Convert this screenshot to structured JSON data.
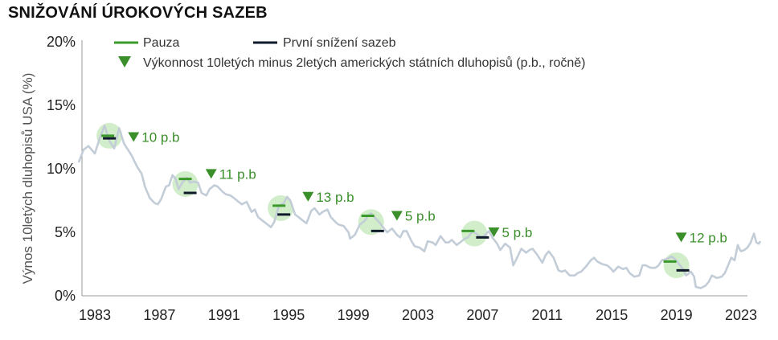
{
  "title": "SNIŽOVÁNÍ ÚROKOVÝCH SAZEB",
  "chart_data": {
    "type": "line",
    "title": "SNIŽOVÁNÍ ÚROKOVÝCH SAZEB",
    "ylabel": "Výnos 10letých dluhopisů USA (%)",
    "xlabel": "",
    "xlim": [
      1983,
      2023
    ],
    "ylim": [
      0,
      20
    ],
    "x_ticks": [
      "1983",
      "1987",
      "1991",
      "1995",
      "1999",
      "2003",
      "2007",
      "2011",
      "2015",
      "2019",
      "2023"
    ],
    "y_ticks": [
      "0%",
      "5%",
      "10%",
      "15%",
      "20%"
    ],
    "legend": {
      "pause_label": "Pauza",
      "first_cut_label": "První snížení sazeb",
      "perf_label": "Výkonnost 10letých minus 2letých amerických státních dluhopisů (p.b., ročně)"
    },
    "colors": {
      "yield": "#c3cdd8",
      "pause": "#3a9a2a",
      "first_cut": "#0f1a2a",
      "highlight": "#cdebc4",
      "annotation": "#3a8f2a"
    },
    "series": [
      {
        "values": [
          [
            1982.0,
            10.5
          ],
          [
            1982.3,
            11.5
          ],
          [
            1982.6,
            11.8
          ],
          [
            1983.0,
            11.2
          ],
          [
            1983.3,
            12.4
          ],
          [
            1983.6,
            13.4
          ],
          [
            1983.9,
            12.2
          ],
          [
            1984.2,
            11.6
          ],
          [
            1984.5,
            13.2
          ],
          [
            1984.8,
            12.0
          ],
          [
            1985.0,
            11.6
          ],
          [
            1985.3,
            11.0
          ],
          [
            1985.6,
            10.2
          ],
          [
            1985.9,
            9.6
          ],
          [
            1986.1,
            8.6
          ],
          [
            1986.4,
            7.7
          ],
          [
            1986.7,
            7.3
          ],
          [
            1986.9,
            7.2
          ],
          [
            1987.1,
            7.6
          ],
          [
            1987.4,
            8.6
          ],
          [
            1987.6,
            8.7
          ],
          [
            1987.8,
            9.5
          ],
          [
            1988.0,
            9.2
          ],
          [
            1988.2,
            8.4
          ],
          [
            1988.4,
            8.9
          ],
          [
            1988.7,
            9.3
          ],
          [
            1988.9,
            8.9
          ],
          [
            1989.1,
            9.0
          ],
          [
            1989.4,
            8.9
          ],
          [
            1989.6,
            8.1
          ],
          [
            1989.9,
            7.9
          ],
          [
            1990.1,
            8.4
          ],
          [
            1990.4,
            8.7
          ],
          [
            1990.6,
            8.6
          ],
          [
            1990.9,
            8.2
          ],
          [
            1991.1,
            8.0
          ],
          [
            1991.4,
            7.9
          ],
          [
            1991.7,
            7.6
          ],
          [
            1991.9,
            7.4
          ],
          [
            1992.1,
            7.2
          ],
          [
            1992.4,
            7.4
          ],
          [
            1992.7,
            6.6
          ],
          [
            1992.9,
            6.8
          ],
          [
            1993.1,
            6.2
          ],
          [
            1993.4,
            5.9
          ],
          [
            1993.7,
            5.6
          ],
          [
            1993.9,
            5.4
          ],
          [
            1994.1,
            5.8
          ],
          [
            1994.4,
            7.1
          ],
          [
            1994.7,
            7.3
          ],
          [
            1994.9,
            7.8
          ],
          [
            1995.1,
            7.5
          ],
          [
            1995.4,
            6.4
          ],
          [
            1995.6,
            6.2
          ],
          [
            1995.9,
            5.9
          ],
          [
            1996.1,
            5.7
          ],
          [
            1996.4,
            6.7
          ],
          [
            1996.6,
            6.9
          ],
          [
            1996.9,
            6.4
          ],
          [
            1997.1,
            6.6
          ],
          [
            1997.4,
            6.8
          ],
          [
            1997.6,
            6.2
          ],
          [
            1997.9,
            5.8
          ],
          [
            1998.1,
            5.6
          ],
          [
            1998.4,
            5.5
          ],
          [
            1998.7,
            5.0
          ],
          [
            1998.8,
            4.5
          ],
          [
            1999.1,
            4.8
          ],
          [
            1999.4,
            5.6
          ],
          [
            1999.7,
            5.9
          ],
          [
            1999.9,
            6.3
          ],
          [
            2000.1,
            6.5
          ],
          [
            2000.3,
            6.2
          ],
          [
            2000.6,
            5.8
          ],
          [
            2000.9,
            5.3
          ],
          [
            2001.1,
            5.0
          ],
          [
            2001.4,
            5.3
          ],
          [
            2001.7,
            4.8
          ],
          [
            2001.9,
            4.6
          ],
          [
            2002.1,
            5.1
          ],
          [
            2002.3,
            5.1
          ],
          [
            2002.6,
            4.3
          ],
          [
            2002.8,
            3.9
          ],
          [
            2003.1,
            3.8
          ],
          [
            2003.4,
            3.5
          ],
          [
            2003.6,
            4.3
          ],
          [
            2003.9,
            4.2
          ],
          [
            2004.1,
            4.0
          ],
          [
            2004.4,
            4.7
          ],
          [
            2004.7,
            4.2
          ],
          [
            2004.9,
            4.2
          ],
          [
            2005.1,
            4.4
          ],
          [
            2005.4,
            4.0
          ],
          [
            2005.7,
            4.3
          ],
          [
            2005.9,
            4.5
          ],
          [
            2006.1,
            4.6
          ],
          [
            2006.4,
            5.1
          ],
          [
            2006.6,
            4.9
          ],
          [
            2006.9,
            4.6
          ],
          [
            2007.1,
            4.7
          ],
          [
            2007.4,
            5.1
          ],
          [
            2007.6,
            4.6
          ],
          [
            2007.9,
            4.1
          ],
          [
            2008.1,
            3.6
          ],
          [
            2008.4,
            4.1
          ],
          [
            2008.7,
            3.8
          ],
          [
            2008.9,
            2.4
          ],
          [
            2009.1,
            2.9
          ],
          [
            2009.4,
            3.7
          ],
          [
            2009.7,
            3.4
          ],
          [
            2009.9,
            3.6
          ],
          [
            2010.1,
            3.7
          ],
          [
            2010.4,
            3.2
          ],
          [
            2010.7,
            2.6
          ],
          [
            2010.9,
            3.2
          ],
          [
            2011.1,
            3.5
          ],
          [
            2011.4,
            3.0
          ],
          [
            2011.7,
            2.0
          ],
          [
            2011.9,
            1.9
          ],
          [
            2012.1,
            2.0
          ],
          [
            2012.4,
            1.6
          ],
          [
            2012.7,
            1.6
          ],
          [
            2012.9,
            1.8
          ],
          [
            2013.1,
            1.9
          ],
          [
            2013.4,
            2.3
          ],
          [
            2013.7,
            2.8
          ],
          [
            2013.9,
            3.0
          ],
          [
            2014.1,
            2.7
          ],
          [
            2014.4,
            2.5
          ],
          [
            2014.7,
            2.4
          ],
          [
            2014.9,
            2.2
          ],
          [
            2015.1,
            1.9
          ],
          [
            2015.4,
            2.3
          ],
          [
            2015.7,
            2.1
          ],
          [
            2015.9,
            2.2
          ],
          [
            2016.1,
            1.8
          ],
          [
            2016.4,
            1.5
          ],
          [
            2016.7,
            1.6
          ],
          [
            2016.9,
            2.4
          ],
          [
            2017.1,
            2.4
          ],
          [
            2017.4,
            2.2
          ],
          [
            2017.7,
            2.2
          ],
          [
            2017.9,
            2.4
          ],
          [
            2018.1,
            2.8
          ],
          [
            2018.4,
            2.9
          ],
          [
            2018.7,
            3.1
          ],
          [
            2018.9,
            2.9
          ],
          [
            2019.1,
            2.6
          ],
          [
            2019.4,
            2.1
          ],
          [
            2019.6,
            1.6
          ],
          [
            2019.9,
            1.9
          ],
          [
            2020.1,
            1.5
          ],
          [
            2020.2,
            0.7
          ],
          [
            2020.5,
            0.6
          ],
          [
            2020.8,
            0.8
          ],
          [
            2021.0,
            1.1
          ],
          [
            2021.2,
            1.6
          ],
          [
            2021.5,
            1.4
          ],
          [
            2021.8,
            1.5
          ],
          [
            2022.0,
            1.8
          ],
          [
            2022.2,
            2.4
          ],
          [
            2022.4,
            3.0
          ],
          [
            2022.6,
            2.8
          ],
          [
            2022.8,
            4.0
          ],
          [
            2022.9,
            3.7
          ],
          [
            2023.0,
            3.5
          ],
          [
            2023.2,
            3.6
          ],
          [
            2023.4,
            3.8
          ],
          [
            2023.6,
            4.2
          ],
          [
            2023.8,
            4.9
          ],
          [
            2023.95,
            4.2
          ],
          [
            2024.1,
            4.1
          ],
          [
            2024.2,
            4.3
          ]
        ]
      }
    ],
    "events": [
      {
        "pause_year": 1983.8,
        "pause_value": 12.6,
        "cut_year": 1983.9,
        "cut_value": 12.4,
        "circle_year": 1983.9,
        "circle_value": 12.6,
        "marker_year": 1985.4,
        "marker_value": 12.5,
        "label": "10 p.b"
      },
      {
        "pause_year": 1988.6,
        "pause_value": 9.2,
        "cut_year": 1988.9,
        "cut_value": 8.1,
        "circle_year": 1988.6,
        "circle_value": 8.8,
        "marker_year": 1990.2,
        "marker_value": 9.6,
        "label": "11 p.b"
      },
      {
        "pause_year": 1994.4,
        "pause_value": 7.1,
        "cut_year": 1994.7,
        "cut_value": 6.4,
        "circle_year": 1994.5,
        "circle_value": 6.9,
        "marker_year": 1996.2,
        "marker_value": 7.8,
        "label": "13 p.b"
      },
      {
        "pause_year": 1999.9,
        "pause_value": 6.3,
        "cut_year": 2000.5,
        "cut_value": 5.1,
        "circle_year": 2000.1,
        "circle_value": 5.8,
        "marker_year": 2001.7,
        "marker_value": 6.3,
        "label": "5 p.b"
      },
      {
        "pause_year": 2006.1,
        "pause_value": 5.1,
        "cut_year": 2007.0,
        "cut_value": 4.6,
        "circle_year": 2006.5,
        "circle_value": 4.9,
        "marker_year": 2007.7,
        "marker_value": 5.0,
        "label": "5 p.b"
      },
      {
        "pause_year": 2018.6,
        "pause_value": 2.7,
        "cut_year": 2019.4,
        "cut_value": 2.0,
        "circle_year": 2019.0,
        "circle_value": 2.4,
        "marker_year": 2019.3,
        "marker_value": 4.6,
        "label": "12 p.b"
      }
    ]
  }
}
